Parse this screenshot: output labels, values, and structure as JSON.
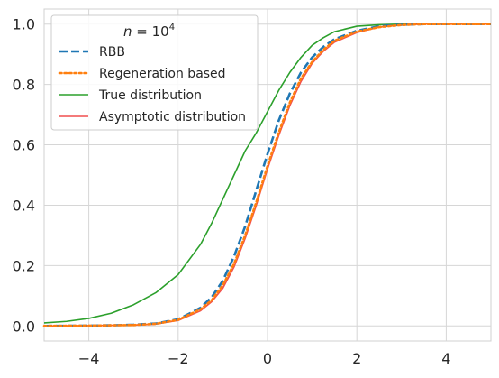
{
  "chart_data": {
    "type": "line",
    "legend_title_prefix": "n = 10",
    "legend_title_exp": "4",
    "xlim": [
      -5,
      5
    ],
    "ylim": [
      -0.05,
      1.05
    ],
    "xticks": [
      -4,
      -2,
      0,
      2,
      4
    ],
    "xtick_labels": [
      "−4",
      "−2",
      "0",
      "2",
      "4"
    ],
    "yticks": [
      0.0,
      0.2,
      0.4,
      0.6,
      0.8,
      1.0
    ],
    "ytick_labels": [
      "0.0",
      "0.2",
      "0.4",
      "0.6",
      "0.8",
      "1.0"
    ],
    "grid": true,
    "legend_position": "upper left",
    "series": [
      {
        "name": "RBB",
        "color": "#1f77b4",
        "style": "dashed",
        "x": [
          -5,
          -4,
          -3.5,
          -3,
          -2.5,
          -2,
          -1.5,
          -1.25,
          -1,
          -0.75,
          -0.5,
          -0.25,
          0,
          0.25,
          0.5,
          0.75,
          1,
          1.25,
          1.5,
          2,
          2.5,
          3,
          3.5,
          4,
          5
        ],
        "y": [
          0.0,
          0.001,
          0.002,
          0.004,
          0.008,
          0.022,
          0.06,
          0.095,
          0.15,
          0.23,
          0.33,
          0.45,
          0.57,
          0.68,
          0.77,
          0.84,
          0.89,
          0.925,
          0.95,
          0.978,
          0.993,
          0.998,
          1.0,
          1.0,
          1.0
        ]
      },
      {
        "name": "Regeneration based",
        "color": "#ff7f0e",
        "style": "dotted",
        "x": [
          -5,
          -4,
          -3.5,
          -3,
          -2.5,
          -2,
          -1.5,
          -1.25,
          -1,
          -0.75,
          -0.5,
          -0.25,
          0,
          0.25,
          0.5,
          0.75,
          1,
          1.25,
          1.5,
          2,
          2.5,
          3,
          3.5,
          4,
          5
        ],
        "y": [
          0.0,
          0.001,
          0.002,
          0.003,
          0.007,
          0.02,
          0.055,
          0.085,
          0.135,
          0.205,
          0.3,
          0.41,
          0.53,
          0.64,
          0.74,
          0.82,
          0.875,
          0.915,
          0.945,
          0.975,
          0.99,
          0.997,
          1.0,
          1.0,
          1.0
        ]
      },
      {
        "name": "True distribution",
        "color": "#2ca02c",
        "style": "solid",
        "x": [
          -5,
          -4.5,
          -4,
          -3.5,
          -3,
          -2.5,
          -2,
          -1.5,
          -1.25,
          -1,
          -0.75,
          -0.5,
          -0.25,
          0,
          0.25,
          0.5,
          0.75,
          1,
          1.25,
          1.5,
          2,
          2.5,
          3,
          3.5,
          5
        ],
        "y": [
          0.01,
          0.015,
          0.025,
          0.042,
          0.07,
          0.11,
          0.17,
          0.27,
          0.34,
          0.42,
          0.5,
          0.58,
          0.64,
          0.71,
          0.78,
          0.84,
          0.89,
          0.93,
          0.955,
          0.975,
          0.993,
          0.998,
          1.0,
          1.0,
          1.0
        ]
      },
      {
        "name": "Asymptotic distribution",
        "color": "#f14e4e",
        "style": "solid",
        "x": [
          -5,
          -4,
          -3.5,
          -3,
          -2.5,
          -2,
          -1.5,
          -1.25,
          -1,
          -0.75,
          -0.5,
          -0.25,
          0,
          0.25,
          0.5,
          0.75,
          1,
          1.25,
          1.5,
          2,
          2.5,
          3,
          3.5,
          4,
          5
        ],
        "y": [
          0.0,
          0.001,
          0.002,
          0.003,
          0.006,
          0.018,
          0.05,
          0.08,
          0.125,
          0.195,
          0.29,
          0.4,
          0.52,
          0.63,
          0.73,
          0.81,
          0.87,
          0.91,
          0.94,
          0.972,
          0.99,
          0.997,
          1.0,
          1.0,
          1.0
        ]
      }
    ]
  }
}
